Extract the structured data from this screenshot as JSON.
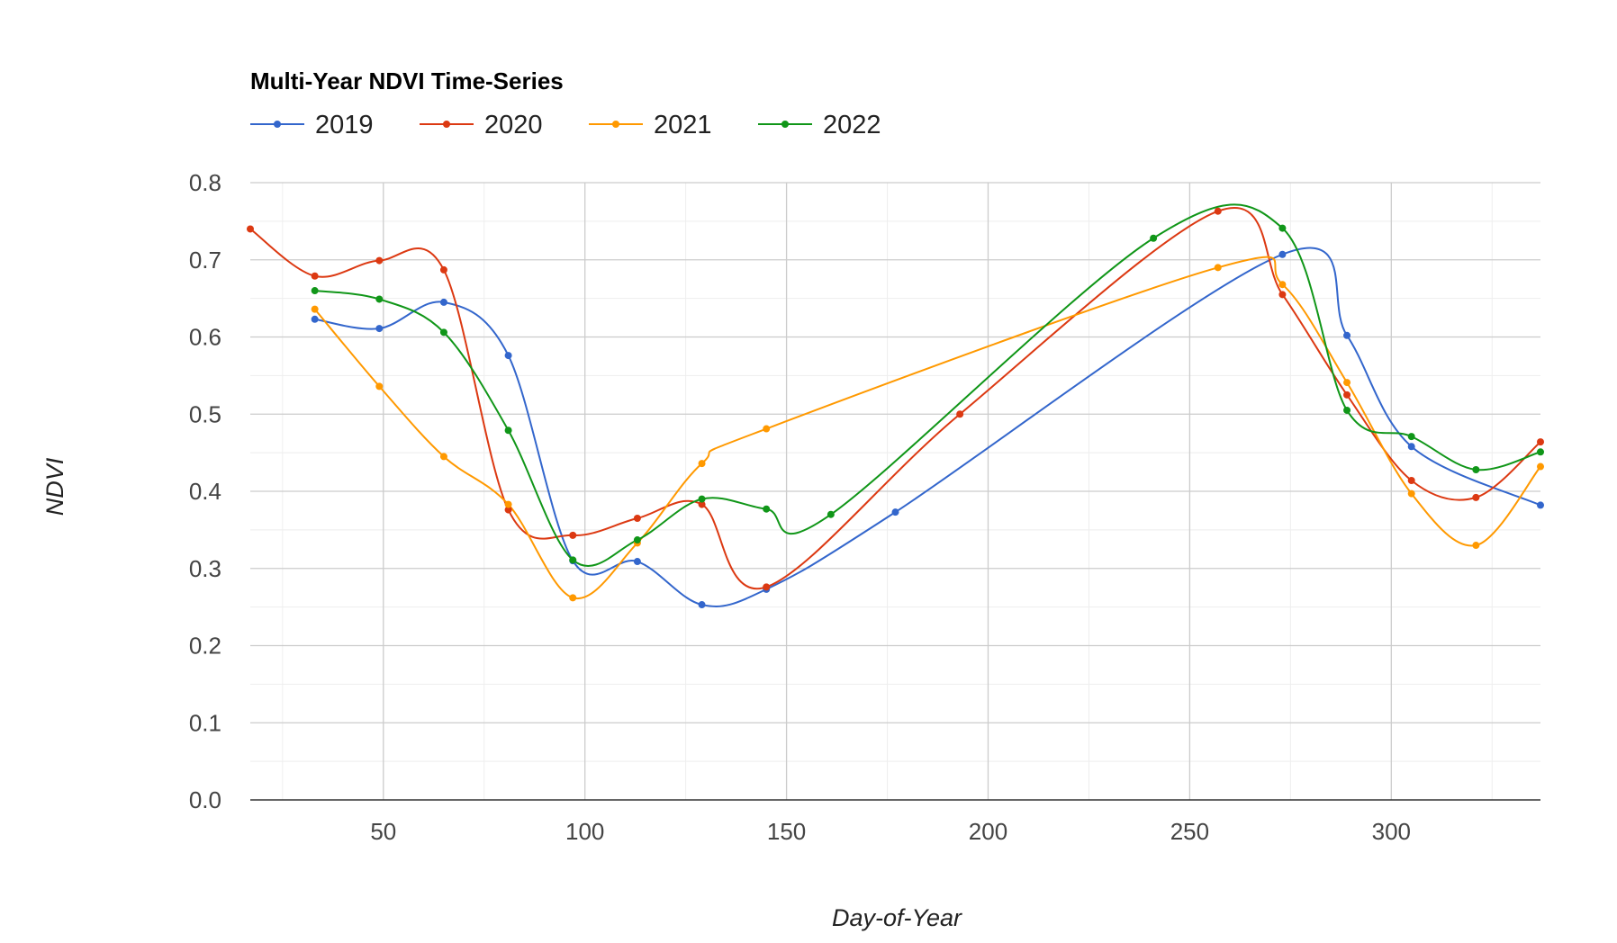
{
  "chart_data": {
    "type": "line",
    "title": "Multi-Year NDVI Time-Series",
    "xlabel": "Day-of-Year",
    "ylabel": "NDVI",
    "xlim": [
      17,
      337
    ],
    "ylim": [
      0,
      0.8
    ],
    "x_ticks": [
      50,
      100,
      150,
      200,
      250,
      300
    ],
    "y_ticks": [
      0.0,
      0.1,
      0.2,
      0.3,
      0.4,
      0.5,
      0.6,
      0.7,
      0.8
    ],
    "y_tick_labels": [
      "0.0",
      "0.1",
      "0.2",
      "0.3",
      "0.4",
      "0.5",
      "0.6",
      "0.7",
      "0.8"
    ],
    "grid": true,
    "legend_position": "top-left",
    "curve": "smooth",
    "series": [
      {
        "name": "2019",
        "color": "#3366cc",
        "points": [
          [
            33,
            0.623
          ],
          [
            49,
            0.611
          ],
          [
            65,
            0.645
          ],
          [
            81,
            0.576
          ],
          [
            97,
            0.31
          ],
          [
            113,
            0.309
          ],
          [
            129,
            0.253
          ],
          [
            145,
            0.273
          ],
          [
            177,
            0.373
          ],
          [
            273,
            0.707
          ],
          [
            289,
            0.602
          ],
          [
            305,
            0.458
          ],
          [
            337,
            0.382
          ]
        ]
      },
      {
        "name": "2020",
        "color": "#dc3912",
        "points": [
          [
            17,
            0.74
          ],
          [
            33,
            0.679
          ],
          [
            49,
            0.699
          ],
          [
            65,
            0.687
          ],
          [
            81,
            0.376
          ],
          [
            97,
            0.343
          ],
          [
            113,
            0.365
          ],
          [
            129,
            0.383
          ],
          [
            145,
            0.276
          ],
          [
            193,
            0.5
          ],
          [
            257,
            0.763
          ],
          [
            273,
            0.655
          ],
          [
            289,
            0.525
          ],
          [
            305,
            0.414
          ],
          [
            321,
            0.392
          ],
          [
            337,
            0.464
          ]
        ]
      },
      {
        "name": "2021",
        "color": "#ff9900",
        "points": [
          [
            33,
            0.636
          ],
          [
            49,
            0.536
          ],
          [
            65,
            0.445
          ],
          [
            81,
            0.383
          ],
          [
            97,
            0.262
          ],
          [
            113,
            0.333
          ],
          [
            129,
            0.436
          ],
          [
            145,
            0.481
          ],
          [
            257,
            0.69
          ],
          [
            273,
            0.668
          ],
          [
            289,
            0.541
          ],
          [
            305,
            0.397
          ],
          [
            321,
            0.33
          ],
          [
            337,
            0.432
          ]
        ]
      },
      {
        "name": "2022",
        "color": "#109618",
        "points": [
          [
            33,
            0.66
          ],
          [
            49,
            0.649
          ],
          [
            65,
            0.606
          ],
          [
            81,
            0.479
          ],
          [
            97,
            0.311
          ],
          [
            113,
            0.337
          ],
          [
            129,
            0.39
          ],
          [
            145,
            0.377
          ],
          [
            161,
            0.37
          ],
          [
            241,
            0.728
          ],
          [
            273,
            0.741
          ],
          [
            289,
            0.505
          ],
          [
            305,
            0.471
          ],
          [
            321,
            0.428
          ],
          [
            337,
            0.451
          ]
        ]
      }
    ]
  }
}
